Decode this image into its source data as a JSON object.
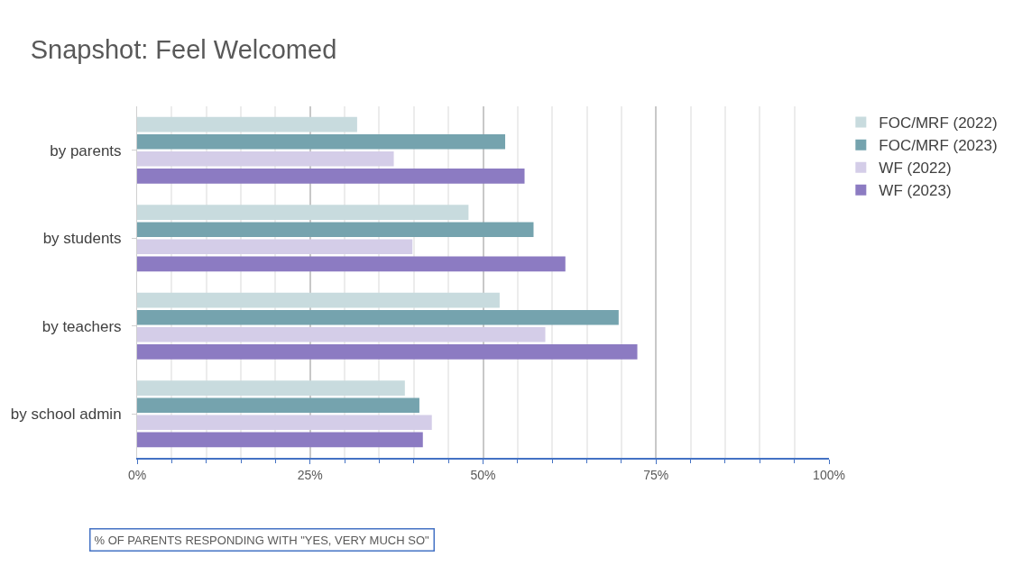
{
  "chart_data": {
    "type": "bar",
    "orientation": "horizontal",
    "title": "Snapshot: Feel Welcomed",
    "xlabel": "% OF PARENTS RESPONDING WITH \"YES, VERY MUCH SO\"",
    "categories": [
      "by parents",
      "by students",
      "by teachers",
      "by school admin"
    ],
    "series": [
      {
        "name": "FOC/MRF (2022)",
        "color": "#c8dbde",
        "values": [
          31.8,
          47.9,
          52.4,
          38.7
        ]
      },
      {
        "name": "FOC/MRF (2023)",
        "color": "#75a3ae",
        "values": [
          53.2,
          57.3,
          69.6,
          40.8
        ]
      },
      {
        "name": "WF (2022)",
        "color": "#d4cde8",
        "values": [
          37.1,
          39.8,
          59.0,
          42.6
        ]
      },
      {
        "name": "WF (2023)",
        "color": "#8c7bc2",
        "values": [
          56.0,
          61.9,
          72.3,
          41.3
        ]
      }
    ],
    "xlim": [
      0,
      100
    ],
    "xticks": [
      {
        "value": 0,
        "label": "0%"
      },
      {
        "value": 25,
        "label": "25%"
      },
      {
        "value": 50,
        "label": "50%"
      },
      {
        "value": 75,
        "label": "75%"
      },
      {
        "value": 100,
        "label": "100%"
      }
    ],
    "grid": "x",
    "legend": "right"
  }
}
